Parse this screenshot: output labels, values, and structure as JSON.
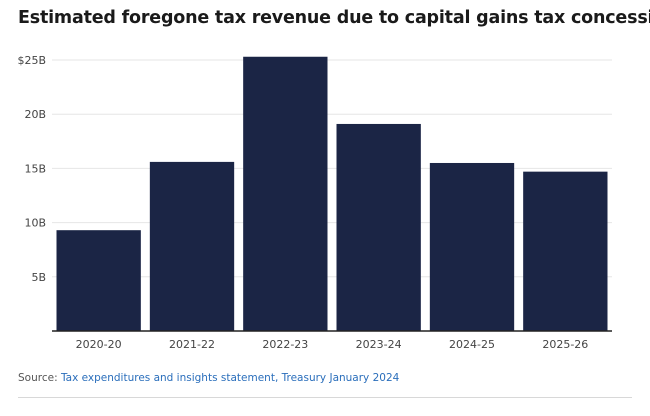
{
  "title": "Estimated foregone tax revenue due to capital gains tax concession",
  "source": {
    "label": "Source:",
    "text": "Tax expenditures and insights statement, Treasury January 2024"
  },
  "chart_data": {
    "type": "bar",
    "title": "Estimated foregone tax revenue due to capital gains tax concession",
    "categories": [
      "2020-20",
      "2021-22",
      "2022-23",
      "2023-24",
      "2024-25",
      "2025-26"
    ],
    "values": [
      9.3,
      15.6,
      25.3,
      19.1,
      15.5,
      14.7
    ],
    "y_ticks": [
      5,
      10,
      15,
      20,
      25
    ],
    "y_tick_labels": [
      "5B",
      "10B",
      "15B",
      "20B",
      "$25B"
    ],
    "ylim": [
      0,
      25
    ],
    "xlabel": "",
    "ylabel": "",
    "grid": true,
    "bar_color": "#1b2545",
    "legend": "none"
  }
}
